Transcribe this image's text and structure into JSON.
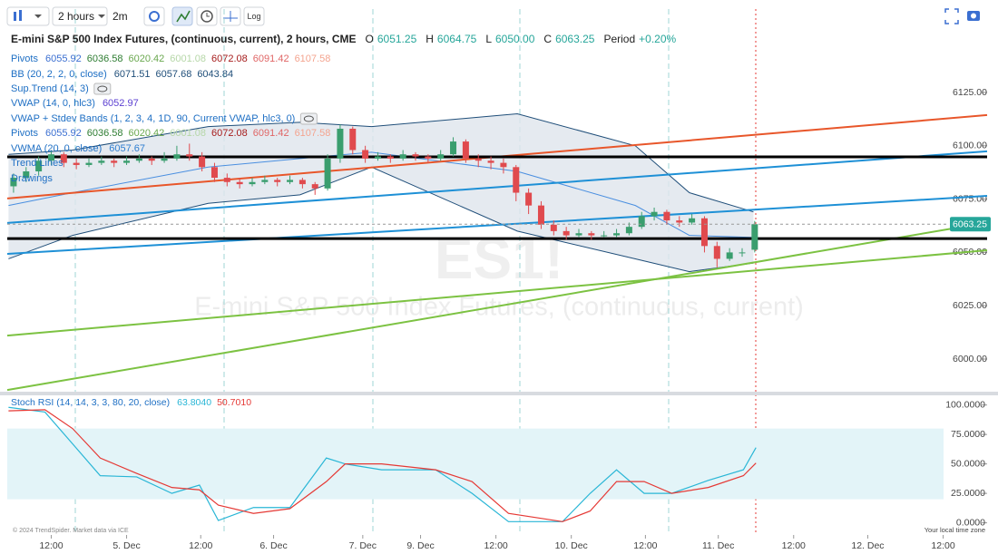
{
  "toolbar": {
    "interval": "2 hours",
    "refresh": "2m",
    "log": "Log"
  },
  "watermark": {
    "symbol": "ES1!",
    "name": "E-mini S&P 500 Index Futures, (continuous, current)"
  },
  "footer": {
    "credit": "© 2024 TrendSpider. Market data via ICE",
    "timezone": "Your local time zone"
  },
  "chart_data": [
    {
      "type": "candlestick",
      "title": "E-mini S&P 500 Index Futures, (continuous, current), 2 hours, CME",
      "ohlc_legend": [
        {
          "key": "O",
          "value": "6051.25"
        },
        {
          "key": "H",
          "value": "6064.75"
        },
        {
          "key": "L",
          "value": "6050.00"
        },
        {
          "key": "C",
          "value": "6063.25"
        },
        {
          "key": "Period",
          "value": "+0.20%"
        }
      ],
      "legend": [
        {
          "name": "Pivots",
          "values": [
            {
              "text": "6055.92",
              "color": "#3b6fd1"
            },
            {
              "text": "6036.58",
              "color": "#2e7d32"
            },
            {
              "text": "6020.42",
              "color": "#6aa84f"
            },
            {
              "text": "6001.08",
              "color": "#b6d7a8"
            },
            {
              "text": "6072.08",
              "color": "#a61c1c"
            },
            {
              "text": "6091.42",
              "color": "#e06666"
            },
            {
              "text": "6107.58",
              "color": "#f4a48f"
            }
          ]
        },
        {
          "name": "BB (20, 2, 2, 0, close)",
          "values": [
            {
              "text": "6071.51",
              "color": "#1f4e79"
            },
            {
              "text": "6057.68",
              "color": "#1f4e79"
            },
            {
              "text": "6043.84",
              "color": "#1f4e79"
            }
          ]
        },
        {
          "name": "Sup.Trend (14, 3)",
          "values": [],
          "hidden": true
        },
        {
          "name": "VWAP (14, 0, hlc3)",
          "values": [
            {
              "text": "6052.97",
              "color": "#5b3fd1"
            }
          ]
        },
        {
          "name": "VWAP + Stdev Bands (1, 2, 3, 4, 1D, 90, Current VWAP, hlc3, 0)",
          "values": [],
          "hidden": true
        },
        {
          "name": "Pivots",
          "values": [
            {
              "text": "6055.92",
              "color": "#3b6fd1"
            },
            {
              "text": "6036.58",
              "color": "#2e7d32"
            },
            {
              "text": "6020.42",
              "color": "#6aa84f"
            },
            {
              "text": "6001.08",
              "color": "#b6d7a8"
            },
            {
              "text": "6072.08",
              "color": "#a61c1c"
            },
            {
              "text": "6091.42",
              "color": "#e06666"
            },
            {
              "text": "6107.58",
              "color": "#f4a48f"
            }
          ]
        },
        {
          "name": "VWMA (20, 0, close)",
          "values": [
            {
              "text": "6057.67",
              "color": "#2f7fd1"
            }
          ]
        },
        {
          "name": "Trend Lines",
          "values": []
        },
        {
          "name": "Drawings",
          "values": []
        }
      ],
      "up_color": "#3a9e6e",
      "down_color": "#e04a4e",
      "x": [
        0.5,
        1.5,
        2.5,
        3.5,
        4.5,
        5.5,
        6.5,
        7.5,
        8.5,
        9.5,
        10.5,
        11.5,
        12.5,
        13.5,
        14.5,
        15.5,
        16.5,
        17.5,
        18.5,
        19.5,
        20.5,
        21.5,
        22.5,
        23.5,
        24.5,
        25.5,
        26.5,
        27.5,
        28.5,
        29.5,
        30.5,
        31.5,
        32.5,
        33.5,
        34.5,
        35.5,
        36.5,
        37.5,
        38.5,
        39.5,
        40.5,
        41.5,
        42.5,
        43.5,
        44.5,
        45.5,
        46.5,
        47.5,
        48.5,
        49.5,
        50.5,
        51.5,
        52.5,
        53.5,
        54.5,
        55.5,
        56.5,
        57.5,
        58.5,
        59.5
      ],
      "open": [
        6081,
        6085,
        6088,
        6093,
        6096,
        6092,
        6091,
        6092,
        6093,
        6092,
        6093,
        6094,
        6093,
        6094,
        6096,
        6095,
        6090,
        6085,
        6083,
        6082,
        6083,
        6084,
        6083,
        6084,
        6082,
        6080,
        6094,
        6108,
        6098,
        6094,
        6095,
        6094,
        6096,
        6095,
        6094,
        6096,
        6102,
        6094,
        6093,
        6092,
        6090,
        6078,
        6072,
        6063,
        6060,
        6058,
        6059,
        6058,
        6058,
        6059,
        6062,
        6067,
        6069,
        6065,
        6064,
        6066,
        6053,
        6047,
        6050,
        6051.25
      ],
      "high": [
        6087,
        6090,
        6095,
        6098,
        6097,
        6094,
        6094,
        6095,
        6094,
        6095,
        6096,
        6095,
        6097,
        6100,
        6101,
        6097,
        6092,
        6087,
        6085,
        6085,
        6086,
        6085,
        6086,
        6085,
        6083,
        6096,
        6110,
        6109,
        6100,
        6097,
        6096,
        6098,
        6097,
        6096,
        6098,
        6104,
        6103,
        6096,
        6095,
        6094,
        6091,
        6080,
        6074,
        6065,
        6062,
        6061,
        6060,
        6060,
        6061,
        6064,
        6069,
        6071,
        6070,
        6067,
        6068,
        6067,
        6055,
        6052,
        6052,
        6064.75
      ],
      "low": [
        6078,
        6083,
        6086,
        6091,
        6090,
        6089,
        6090,
        6091,
        6090,
        6091,
        6092,
        6091,
        6092,
        6093,
        6093,
        6088,
        6083,
        6081,
        6080,
        6081,
        6082,
        6081,
        6082,
        6080,
        6077,
        6079,
        6092,
        6096,
        6092,
        6093,
        6092,
        6093,
        6093,
        6092,
        6093,
        6095,
        6092,
        6090,
        6089,
        6087,
        6074,
        6068,
        6061,
        6058,
        6056,
        6057,
        6056,
        6057,
        6057,
        6058,
        6061,
        6065,
        6063,
        6062,
        6063,
        6050,
        6043,
        6046,
        6048,
        6050
      ],
      "close": [
        6085,
        6088,
        6093,
        6096,
        6092,
        6091,
        6092,
        6093,
        6092,
        6093,
        6094,
        6093,
        6094,
        6096,
        6095,
        6090,
        6085,
        6083,
        6082,
        6083,
        6084,
        6083,
        6084,
        6082,
        6080,
        6094,
        6108,
        6098,
        6094,
        6095,
        6094,
        6096,
        6095,
        6094,
        6096,
        6102,
        6094,
        6093,
        6092,
        6090,
        6078,
        6072,
        6063,
        6060,
        6058,
        6059,
        6058,
        6058,
        6059,
        6062,
        6067,
        6069,
        6065,
        6064,
        6066,
        6053,
        6047,
        6050,
        6050,
        6063.25
      ],
      "bollinger": {
        "color": "#1f4e79",
        "fill": "#dfe5ec",
        "mid_color": "#4a8fe0",
        "x": [
          0.1,
          5.2,
          16,
          23.3,
          29,
          40.6,
          50,
          54.3,
          59.4
        ],
        "upper": [
          6096,
          6098,
          6109,
          6111,
          6109,
          6115,
          6100,
          6078,
          6069
        ],
        "middle": [
          6072,
          6078,
          6090,
          6094,
          6097,
          6088,
          6072,
          6058,
          6057
        ],
        "lower": [
          6047,
          6058,
          6073,
          6077,
          6090,
          6060,
          6047,
          6041,
          6045
        ]
      },
      "trend_lines": [
        {
          "x": [
            0,
            78
          ],
          "values": [
            6075.3,
            6114.4
          ],
          "color": "#e8562a"
        },
        {
          "x": [
            0,
            78
          ],
          "values": [
            6063.8,
            6097.4
          ],
          "color": "#1e90d6"
        },
        {
          "x": [
            0,
            78
          ],
          "values": [
            6049.3,
            6076.5
          ],
          "color": "#1e90d6"
        },
        {
          "x": [
            0,
            78
          ],
          "values": [
            6011,
            6051
          ],
          "color": "#7cc242"
        },
        {
          "x": [
            0,
            78
          ],
          "values": [
            5985.5,
            6064
          ],
          "color": "#7cc242"
        }
      ],
      "levels": [
        {
          "value": 6094.8,
          "color": "#000000"
        },
        {
          "value": 6056.5,
          "color": "#000000"
        }
      ],
      "xlim": [
        0,
        78
      ],
      "ylim": [
        5984.7,
        6164.1
      ],
      "yticks": [
        {
          "value": 6000,
          "label": "6000.00"
        },
        {
          "value": 6025,
          "label": "6025.00"
        },
        {
          "value": 6050,
          "label": "6050.00"
        },
        {
          "value": 6075,
          "label": "6075.00"
        },
        {
          "value": 6100,
          "label": "6100.00"
        },
        {
          "value": 6125,
          "label": "6125.00"
        }
      ],
      "price_tag_color": "#26a69a"
    },
    {
      "type": "line",
      "title": "Stoch RSI (14, 14, 3, 3, 80, 20, close)",
      "legend_values": [
        {
          "text": "63.8040",
          "color": "#29b6d6"
        },
        {
          "text": "50.7010",
          "color": "#e53935"
        }
      ],
      "x": [
        0.1,
        3,
        5.2,
        7.4,
        10.3,
        13.1,
        15.3,
        16.8,
        19.6,
        22.5,
        25.4,
        26.9,
        29.8,
        34.1,
        37,
        39.9,
        44.2,
        46.4,
        48.5,
        50.7,
        52.9,
        55.8,
        58.6,
        59.6
      ],
      "series": [
        {
          "color": "#29b6d6",
          "values": [
            98,
            94,
            67,
            40,
            39,
            25,
            32,
            2,
            13,
            13,
            55,
            50,
            45,
            45,
            25,
            1,
            1,
            25,
            45,
            25,
            25,
            36,
            45,
            63.804
          ]
        },
        {
          "color": "#e53935",
          "values": [
            95,
            96,
            80,
            55,
            42,
            30,
            28,
            15,
            8,
            12,
            35,
            50,
            50,
            45,
            35,
            8,
            1,
            10,
            35,
            35,
            25,
            30,
            40,
            50.701
          ]
        }
      ],
      "bands": [
        20,
        80
      ],
      "band_color": "#e3f4f8",
      "xlim": [
        0,
        78
      ],
      "ylim": [
        -10.3,
        108.2
      ],
      "yticks": [
        {
          "value": 0,
          "label": "0.0000"
        },
        {
          "value": 25,
          "label": "25.0000"
        },
        {
          "value": 50,
          "label": "50.0000"
        },
        {
          "value": 75,
          "label": "75.0000"
        },
        {
          "value": 100,
          "label": "100.0000"
        }
      ],
      "xticks": [
        {
          "value": 3.5,
          "label": "12:00"
        },
        {
          "value": 9.5,
          "label": "5. Dec"
        },
        {
          "value": 15.4,
          "label": "12:00"
        },
        {
          "value": 21.2,
          "label": "6. Dec"
        },
        {
          "value": 28.3,
          "label": "7. Dec"
        },
        {
          "value": 32.9,
          "label": "9. Dec"
        },
        {
          "value": 38.9,
          "label": "12:00"
        },
        {
          "value": 44.9,
          "label": "10. Dec"
        },
        {
          "value": 50.8,
          "label": "12:00"
        },
        {
          "value": 56.6,
          "label": "11. Dec"
        },
        {
          "value": 62.6,
          "label": "12:00"
        },
        {
          "value": 68.5,
          "label": "12. Dec"
        },
        {
          "value": 74.5,
          "label": "12:00"
        }
      ]
    }
  ]
}
